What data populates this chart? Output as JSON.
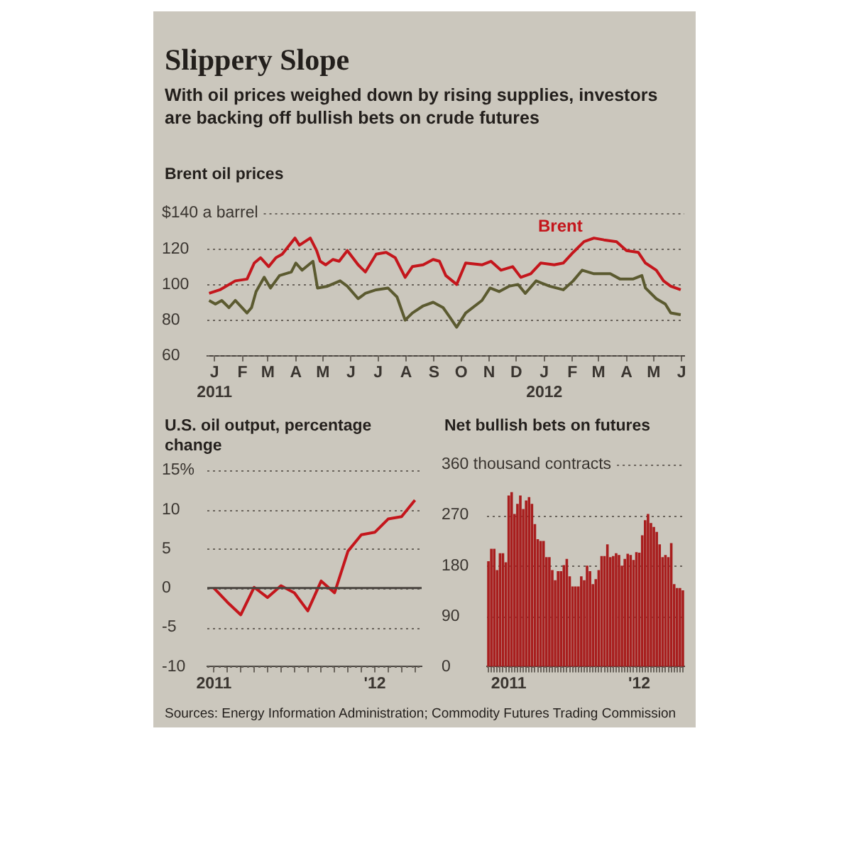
{
  "chart_data": [
    {
      "type": "other",
      "title": "Slippery Slope",
      "subtitle": "With oil prices weighed down by rising supplies, investors are backing off bullish bets on crude futures"
    },
    {
      "type": "line",
      "title": "Brent oil prices",
      "grid": "y",
      "legend": false,
      "marker": "none",
      "line_style": "solid",
      "xlim": [
        "2011-01-01",
        "2012-06-12"
      ],
      "xticks": [
        {
          "value": "2011-01-09",
          "label": "J\n2011"
        },
        {
          "value": "2011-02-09",
          "label": "F"
        },
        {
          "value": "2011-03-09",
          "label": "M"
        },
        {
          "value": "2011-04-09",
          "label": "A"
        },
        {
          "value": "2011-05-09",
          "label": "M"
        },
        {
          "value": "2011-06-09",
          "label": "J"
        },
        {
          "value": "2011-07-09",
          "label": "J"
        },
        {
          "value": "2011-08-09",
          "label": "A"
        },
        {
          "value": "2011-09-09",
          "label": "S"
        },
        {
          "value": "2011-10-09",
          "label": "O"
        },
        {
          "value": "2011-11-09",
          "label": "N"
        },
        {
          "value": "2011-12-09",
          "label": "D"
        },
        {
          "value": "2012-01-09",
          "label": "J\n2012"
        },
        {
          "value": "2012-02-09",
          "label": "F"
        },
        {
          "value": "2012-03-09",
          "label": "M"
        },
        {
          "value": "2012-04-09",
          "label": "A"
        },
        {
          "value": "2012-05-09",
          "label": "M"
        },
        {
          "value": "2012-06-09",
          "label": "J"
        }
      ],
      "ylim": [
        60,
        140
      ],
      "yticks": [
        60,
        80,
        100,
        120,
        {
          "value": 140,
          "label": "$140 a barrel"
        }
      ],
      "series": [
        {
          "name": "Brent",
          "color": "#c4161c",
          "x": [
            "2011-01-03",
            "2011-01-15",
            "2011-02-01",
            "2011-02-14",
            "2011-02-22",
            "2011-03-01",
            "2011-03-10",
            "2011-03-18",
            "2011-03-25",
            "2011-04-08",
            "2011-04-13",
            "2011-04-25",
            "2011-05-02",
            "2011-05-06",
            "2011-05-12",
            "2011-05-20",
            "2011-05-27",
            "2011-06-05",
            "2011-06-17",
            "2011-06-25",
            "2011-07-07",
            "2011-07-18",
            "2011-07-28",
            "2011-08-08",
            "2011-08-16",
            "2011-08-28",
            "2011-09-08",
            "2011-09-15",
            "2011-09-22",
            "2011-10-04",
            "2011-10-14",
            "2011-11-01",
            "2011-11-11",
            "2011-11-22",
            "2011-12-05",
            "2011-12-14",
            "2011-12-25",
            "2012-01-05",
            "2012-01-20",
            "2012-01-30",
            "2012-02-10",
            "2012-02-22",
            "2012-03-04",
            "2012-03-15",
            "2012-03-29",
            "2012-04-09",
            "2012-04-22",
            "2012-04-30",
            "2012-05-12",
            "2012-05-20",
            "2012-05-28",
            "2012-06-08"
          ],
          "values": [
            95,
            97,
            102,
            103,
            112,
            115,
            110,
            115,
            117,
            126,
            122,
            126,
            119,
            113,
            111,
            114,
            113,
            119,
            111,
            107,
            117,
            118,
            115,
            104,
            110,
            111,
            114,
            113,
            105,
            100,
            112,
            111,
            113,
            108,
            110,
            104,
            106,
            112,
            111,
            112,
            118,
            124,
            126,
            125,
            124,
            119,
            118,
            112,
            108,
            102,
            99,
            97
          ]
        },
        {
          "color": "#5b5a30",
          "x": [
            "2011-01-03",
            "2011-01-10",
            "2011-01-17",
            "2011-01-25",
            "2011-02-01",
            "2011-02-14",
            "2011-02-19",
            "2011-02-24",
            "2011-03-05",
            "2011-03-12",
            "2011-03-22",
            "2011-04-04",
            "2011-04-09",
            "2011-04-16",
            "2011-04-28",
            "2011-05-03",
            "2011-05-14",
            "2011-05-28",
            "2011-06-05",
            "2011-06-17",
            "2011-06-25",
            "2011-07-07",
            "2011-07-20",
            "2011-07-30",
            "2011-08-08",
            "2011-08-16",
            "2011-08-28",
            "2011-09-08",
            "2011-09-19",
            "2011-09-26",
            "2011-10-04",
            "2011-10-14",
            "2011-11-01",
            "2011-11-10",
            "2011-11-20",
            "2011-12-01",
            "2011-12-11",
            "2011-12-19",
            "2011-12-31",
            "2012-01-15",
            "2012-01-30",
            "2012-02-10",
            "2012-02-20",
            "2012-03-04",
            "2012-03-22",
            "2012-04-02",
            "2012-04-16",
            "2012-04-26",
            "2012-04-30",
            "2012-05-12",
            "2012-05-22",
            "2012-05-28",
            "2012-06-08"
          ],
          "values": [
            91,
            89,
            91,
            87,
            91,
            84,
            87,
            96,
            104,
            98,
            105,
            107,
            112,
            108,
            113,
            98,
            99,
            102,
            99,
            92,
            95,
            97,
            98,
            93,
            80,
            84,
            88,
            90,
            87,
            82,
            76,
            84,
            91,
            98,
            96,
            99,
            100,
            95,
            102,
            99,
            97,
            102,
            108,
            106,
            106,
            103,
            103,
            105,
            98,
            92,
            89,
            84,
            83
          ]
        }
      ]
    },
    {
      "type": "line",
      "title": "U.S. oil output, percentage change",
      "grid": "y",
      "legend": false,
      "marker": "none",
      "line_style": "solid",
      "categories": [
        "2011",
        null,
        null,
        null,
        null,
        null,
        null,
        null,
        null,
        null,
        null,
        null,
        "'12",
        null,
        null,
        null
      ],
      "ylim": [
        -10,
        15
      ],
      "yticks": [
        -10,
        -5,
        0,
        5,
        10,
        {
          "value": 15,
          "label": "15%"
        }
      ],
      "ref_lines": [
        {
          "axis": "y",
          "value": 0,
          "color": "#4a4540"
        }
      ],
      "series": [
        {
          "color": "#c4161c",
          "values": [
            0,
            -1.8,
            -3.4,
            0.1,
            -1.2,
            0.3,
            -0.6,
            -2.9,
            0.9,
            -0.6,
            4.7,
            6.8,
            7.1,
            8.8,
            9.1,
            11.2
          ]
        }
      ]
    },
    {
      "type": "bar",
      "title": "Net bullish bets on futures",
      "grid": "y",
      "legend": false,
      "categories": [
        null,
        null,
        null,
        null,
        null,
        null,
        null,
        "2011",
        null,
        null,
        null,
        null,
        null,
        null,
        null,
        null,
        null,
        null,
        null,
        null,
        null,
        null,
        null,
        null,
        null,
        null,
        null,
        null,
        null,
        null,
        null,
        null,
        null,
        null,
        null,
        null,
        null,
        null,
        null,
        null,
        null,
        null,
        null,
        null,
        null,
        null,
        null,
        null,
        null,
        null,
        null,
        null,
        "'12",
        null,
        null,
        null,
        null,
        null,
        null,
        null,
        null,
        null,
        null,
        null,
        null,
        null,
        null,
        null
      ],
      "ylim": [
        0,
        360
      ],
      "yticks": [
        0,
        90,
        180,
        270,
        {
          "value": 360,
          "label": "360 thousand contracts"
        }
      ],
      "series": [
        {
          "color": "#a81e1e",
          "values": [
            188,
            210,
            210,
            172,
            202,
            202,
            186,
            305,
            311,
            272,
            290,
            305,
            281,
            296,
            302,
            290,
            254,
            227,
            224,
            224,
            195,
            195,
            172,
            154,
            170,
            170,
            181,
            192,
            161,
            143,
            143,
            143,
            161,
            154,
            180,
            170,
            147,
            156,
            172,
            197,
            197,
            218,
            195,
            197,
            202,
            199,
            180,
            192,
            201,
            199,
            190,
            204,
            203,
            234,
            261,
            272,
            256,
            249,
            240,
            218,
            195,
            199,
            195,
            220,
            147,
            140,
            140,
            136
          ]
        }
      ],
      "annotations": [
        "Sources: Energy Information Administration; Commodity Futures Trading Commission"
      ]
    }
  ]
}
